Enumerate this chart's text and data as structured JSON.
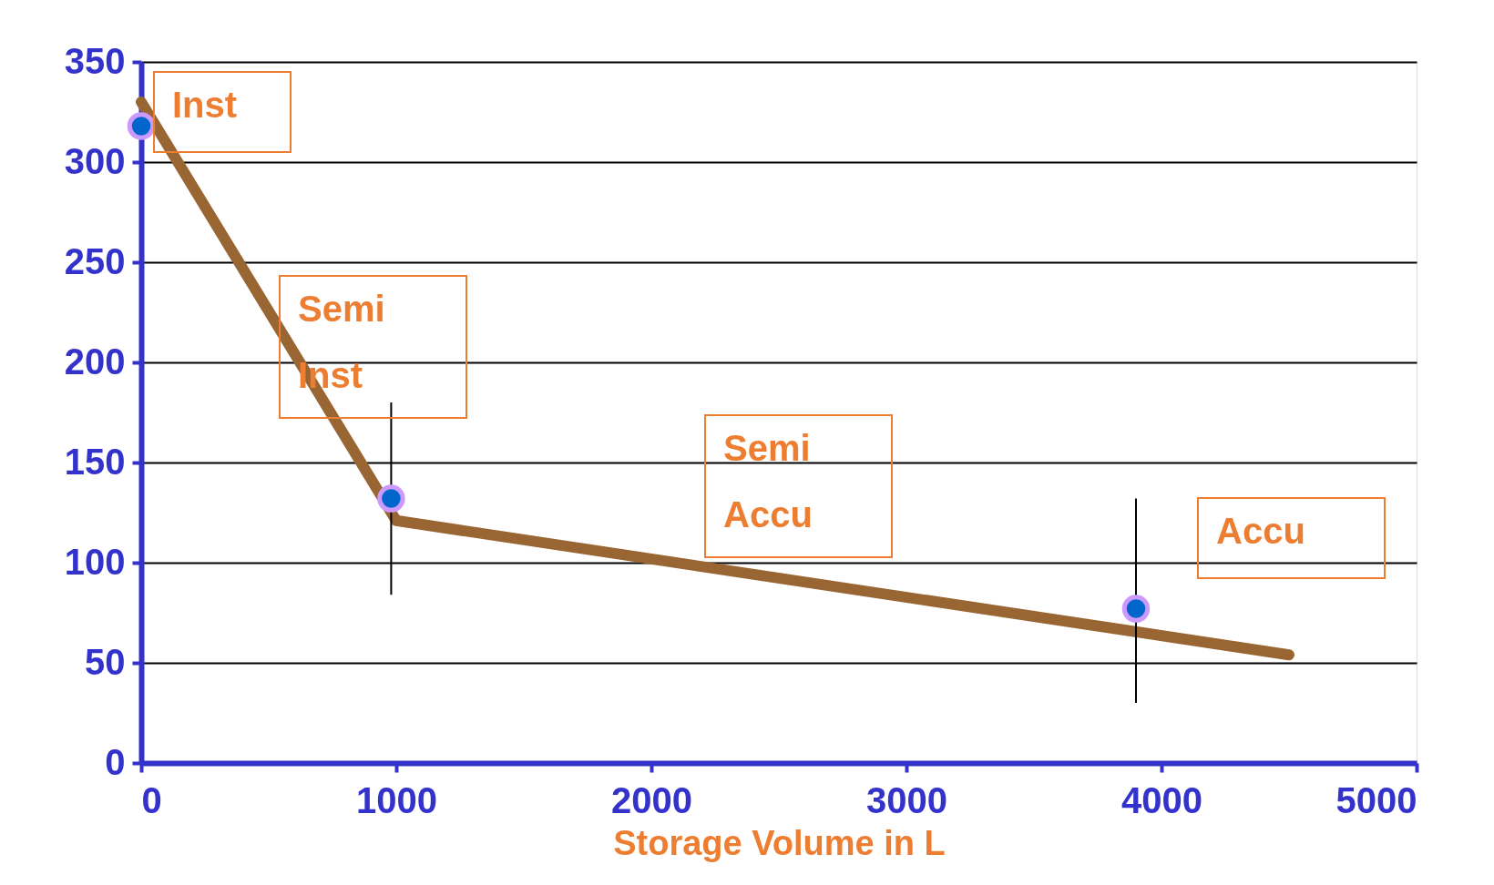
{
  "chart_data": {
    "type": "line",
    "xlabel": "Storage Volume in L",
    "xlim": [
      0,
      5000
    ],
    "xticks": [
      0,
      {
        "value": 1000,
        "label": "1000"
      },
      {
        "value": 2000,
        "label": "2000"
      },
      {
        "value": 3000,
        "label": "3000"
      },
      {
        "value": 4000,
        "label": "4000"
      },
      {
        "value": 5000,
        "label": "5000"
      }
    ],
    "ylim": [
      0,
      350
    ],
    "yticks": [
      0,
      50,
      100,
      150,
      200,
      250,
      300,
      350
    ],
    "grid": "y",
    "series": [
      {
        "color": "#996633",
        "x": [
          0,
          1000,
          4500
        ],
        "values": [
          330,
          121,
          54
        ]
      },
      {
        "type": "scatter",
        "color": "#0066cc",
        "x": [
          0,
          980,
          3900
        ],
        "values": [
          318,
          132,
          77
        ],
        "errors": [
          null,
          [
            84,
            180
          ],
          [
            30,
            132
          ]
        ]
      }
    ],
    "annotations": [
      "Inst",
      "Semi\nInst",
      "Semi\nAccu",
      "Accu"
    ]
  }
}
